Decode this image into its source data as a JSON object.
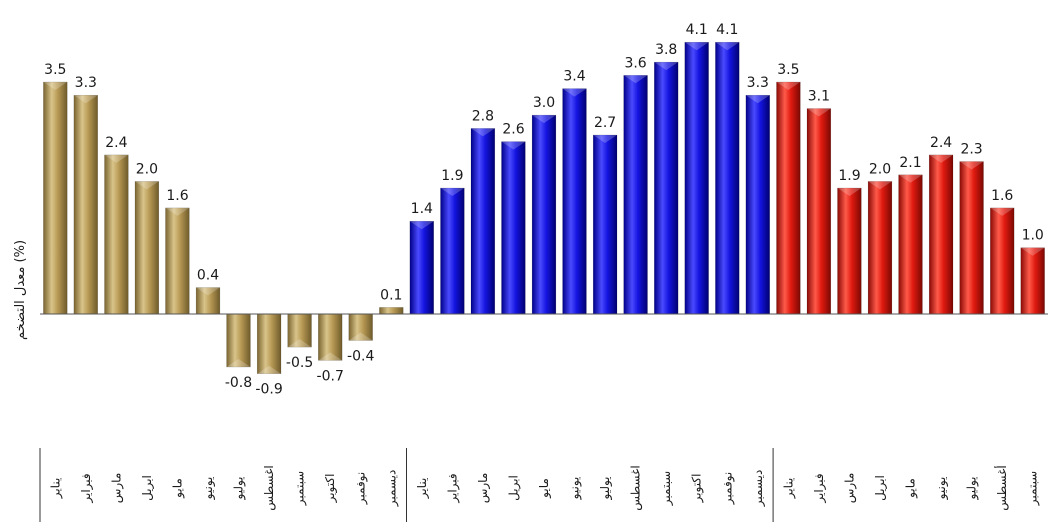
{
  "chart_data": {
    "type": "bar",
    "ylabel": "معدل التضخم (%)",
    "ylim": [
      -0.9,
      4.1
    ],
    "grid": false,
    "legend": "none",
    "colors": {
      "group1": "#b89a55",
      "group2": "#1414e0",
      "group3": "#e01a10"
    },
    "categories": [
      "يناير",
      "فبراير",
      "مارس",
      "ابريل",
      "مايو",
      "يونيو",
      "يوليو",
      "اغسطس",
      "سبتمبر",
      "اكتوبر",
      "نوفمبر",
      "ديسمبر",
      "يناير",
      "فبراير",
      "مارس",
      "ابريل",
      "مايو",
      "يونيو",
      "يوليو",
      "اغسطس",
      "سبتمبر",
      "اكتوبر",
      "نوفمبر",
      "ديسمبر",
      "يناير",
      "فبراير",
      "مارس",
      "ابريل",
      "مايو",
      "يونيو",
      "يوليو",
      "أغسطس",
      "سبتمبر"
    ],
    "values": [
      3.5,
      3.3,
      2.4,
      2.0,
      1.6,
      0.4,
      -0.8,
      -0.9,
      -0.5,
      -0.7,
      -0.4,
      0.1,
      1.4,
      1.9,
      2.8,
      2.6,
      3.0,
      3.4,
      2.7,
      3.6,
      3.8,
      4.1,
      4.1,
      3.3,
      3.5,
      3.1,
      1.9,
      2.0,
      2.1,
      2.4,
      2.3,
      1.6,
      1.0
    ],
    "value_labels": [
      "3.5",
      "3.3",
      "2.4",
      "2.0",
      "1.6",
      "0.4",
      "-0.8",
      "-0.9",
      "-0.5",
      "-0.7",
      "-0.4",
      "0.1",
      "1.4",
      "1.9",
      "2.8",
      "2.6",
      "3.0",
      "3.4",
      "2.7",
      "3.6",
      "3.8",
      "4.1",
      "4.1",
      "3.3",
      "3.5",
      "3.1",
      "1.9",
      "2.0",
      "2.1",
      "2.4",
      "2.3",
      "1.6",
      "1.0"
    ],
    "groups": [
      12,
      12,
      9
    ]
  }
}
